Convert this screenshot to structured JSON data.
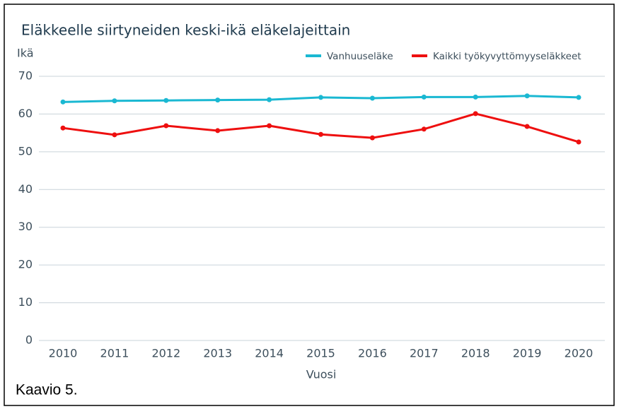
{
  "chart_data": {
    "type": "line",
    "title": "Eläkkeelle siirtyneiden keski-ikä eläkelajeittain",
    "y_label": "Ikä",
    "x_label": "Vuosi",
    "caption": "Kaavio 5.",
    "categories": [
      "2010",
      "2011",
      "2012",
      "2013",
      "2014",
      "2015",
      "2016",
      "2017",
      "2018",
      "2019",
      "2020"
    ],
    "series": [
      {
        "name": "Vanhuuseläke",
        "color": "#1ab8d2",
        "values": [
          63.2,
          63.5,
          63.6,
          63.7,
          63.8,
          64.4,
          64.2,
          64.5,
          64.5,
          64.8,
          64.4
        ]
      },
      {
        "name": "Kaikki työkyvyttömyyseläkkeet",
        "color": "#ee0f0f",
        "values": [
          56.3,
          54.5,
          56.9,
          55.6,
          56.9,
          54.6,
          53.7,
          56.0,
          60.1,
          56.7,
          52.6
        ]
      }
    ],
    "ylim": [
      0,
      70
    ],
    "yticks": [
      0,
      10,
      20,
      30,
      40,
      50,
      60,
      70
    ],
    "grid": true,
    "legend": "top-right"
  }
}
